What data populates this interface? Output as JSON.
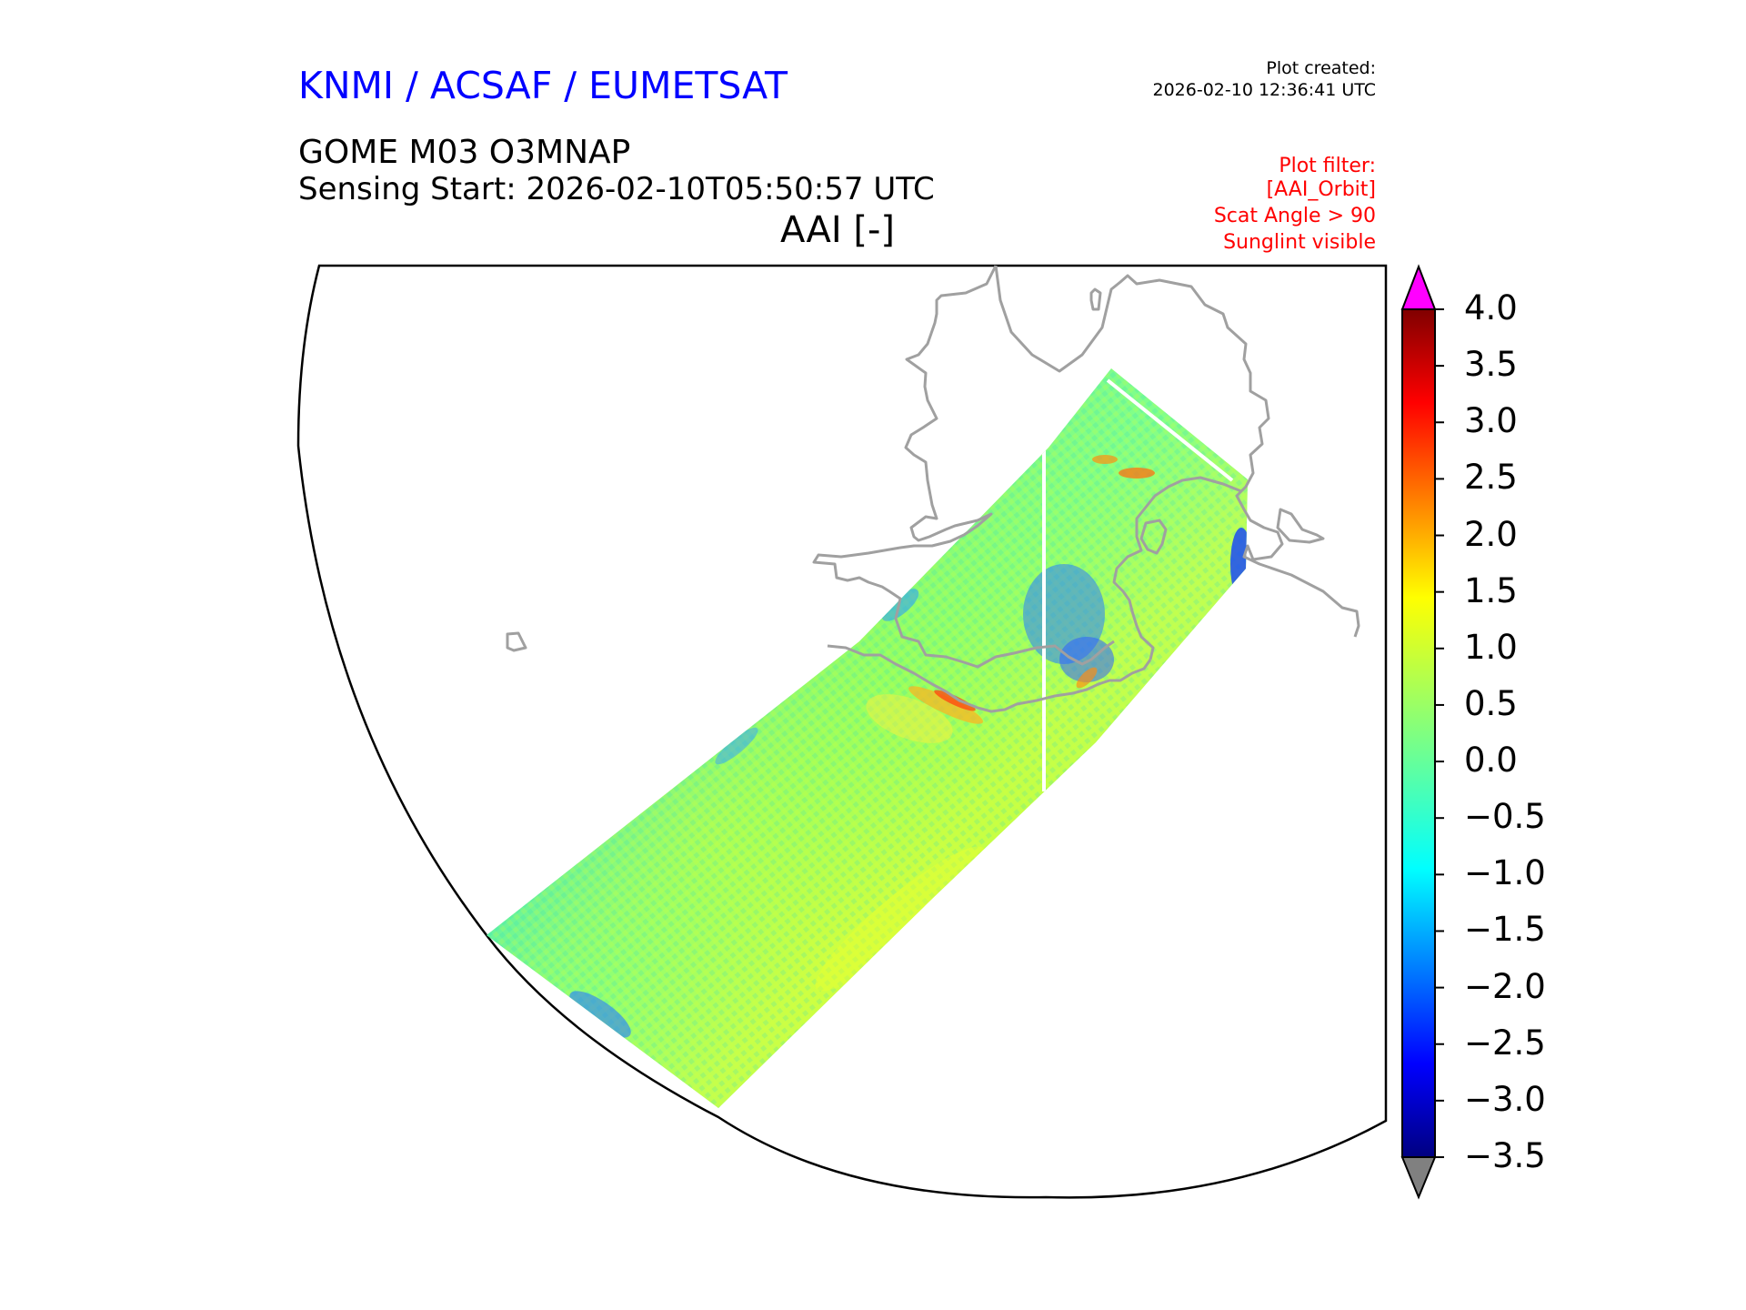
{
  "header": {
    "organizations": "KNMI / ACSAF / EUMETSAT",
    "plot_created_label": "Plot created:",
    "plot_created_date": "2026-02-10 12:36:41 UTC",
    "product": "GOME M03 O3MNAP",
    "sensing_start": "Sensing Start: 2026-02-10T05:50:57 UTC",
    "variable": "AAI [-]"
  },
  "plot_filter": {
    "title": "Plot filter:",
    "lines": [
      "[AAI_Orbit]",
      "Scat Angle > 90",
      "Sunglint visible"
    ]
  },
  "colors": {
    "title_blue": "#0000ff",
    "filter_red": "#ff0000",
    "coastline": "#a0a0a0",
    "over_range": "#ff00ff",
    "under_range": "#808080"
  },
  "chart_data": {
    "type": "heatmap",
    "colormap": "jet",
    "colorbar": {
      "ticks": [
        "4.0",
        "3.5",
        "3.0",
        "2.5",
        "2.0",
        "1.5",
        "1.0",
        "0.5",
        "0.0",
        "−0.5",
        "−1.0",
        "−1.5",
        "−2.0",
        "−2.5",
        "−3.0",
        "−3.5"
      ],
      "vmin": -3.5,
      "vmax": 4.0,
      "extend": "both"
    },
    "projection": "polar stereographic (North Pacific sector)"
  }
}
